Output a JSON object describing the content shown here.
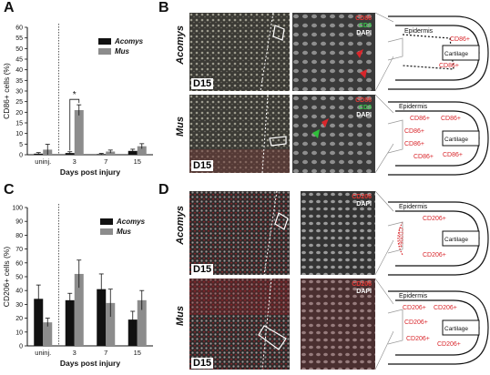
{
  "panel_labels": {
    "a": "A",
    "b": "B",
    "c": "C",
    "d": "D"
  },
  "chart_data": [
    {
      "type": "bar",
      "panel": "A",
      "categories": [
        "uninj.",
        "3",
        "7",
        "15"
      ],
      "series": [
        {
          "name": "Acomys",
          "values": [
            0.5,
            0.8,
            0.3,
            1.8
          ],
          "errors": [
            0.5,
            0.6,
            0.3,
            0.8
          ],
          "color": "#111111"
        },
        {
          "name": "Mus",
          "values": [
            2.4,
            21.0,
            1.5,
            4.0
          ],
          "errors": [
            2.5,
            2.5,
            0.7,
            1.2
          ],
          "color": "#8c8c8c"
        }
      ],
      "ylabel": "CD86+ cells (%)",
      "xlabel": "Days post injury",
      "ylim": [
        0,
        60
      ],
      "yticks": [
        "0",
        "5",
        "10",
        "15",
        "20",
        "25",
        "30",
        "35",
        "40",
        "45",
        "50",
        "55",
        "60"
      ],
      "annotation": "*",
      "legend": "top-right"
    },
    {
      "type": "bar",
      "panel": "C",
      "categories": [
        "uninj.",
        "3",
        "7",
        "15"
      ],
      "series": [
        {
          "name": "Acomys",
          "values": [
            34,
            33,
            41,
            19
          ],
          "errors": [
            10,
            5,
            11,
            6
          ],
          "color": "#111111"
        },
        {
          "name": "Mus",
          "values": [
            17,
            52,
            31,
            33
          ],
          "errors": [
            3,
            10,
            10,
            7
          ],
          "color": "#8c8c8c"
        }
      ],
      "ylabel": "CD206+ cells (%)",
      "xlabel": "Days post injury",
      "ylim": [
        0,
        100
      ],
      "yticks": [
        "0",
        "10",
        "20",
        "30",
        "40",
        "50",
        "60",
        "70",
        "80",
        "90",
        "100"
      ],
      "legend": "top-right"
    }
  ],
  "micrographs": {
    "b_top": {
      "species": "Acomys",
      "day": "D15",
      "stains": [
        "CD86",
        "CD3",
        "DAPI"
      ]
    },
    "b_bottom": {
      "species": "Mus",
      "day": "D15",
      "stains": [
        "CD86",
        "CD3",
        "DAPI"
      ]
    },
    "d_top": {
      "species": "Acomys",
      "day": "D15",
      "stains": [
        "CD206",
        "DAPI"
      ]
    },
    "d_bottom": {
      "species": "Mus",
      "day": "D15",
      "stains": [
        "CD206",
        "DAPI"
      ]
    }
  },
  "schematics": {
    "b_top": {
      "epidermis": "Epidermis",
      "cartilage": "Cartilage",
      "markers": [
        "CD86+",
        "CD86+"
      ]
    },
    "b_bottom": {
      "epidermis": "Epidermis",
      "cartilage": "Cartilage",
      "markers": [
        "CD86+",
        "CD86+",
        "CD86+",
        "CD86+",
        "CD86+",
        "CD86+"
      ]
    },
    "d_top": {
      "epidermis": "Epidermis",
      "cartilage": "Cartilage",
      "markers": [
        "CD206+",
        "CD206+",
        "CD206+"
      ]
    },
    "d_bottom": {
      "epidermis": "Epidermis",
      "cartilage": "Cartilage",
      "markers": [
        "CD206+",
        "CD206+",
        "CD206+",
        "CD206+",
        "CD206+"
      ]
    }
  },
  "colors": {
    "acomys": "#111111",
    "mus": "#8c8c8c",
    "marker_red": "#d9262b",
    "marker_green": "#2fbf3a"
  }
}
